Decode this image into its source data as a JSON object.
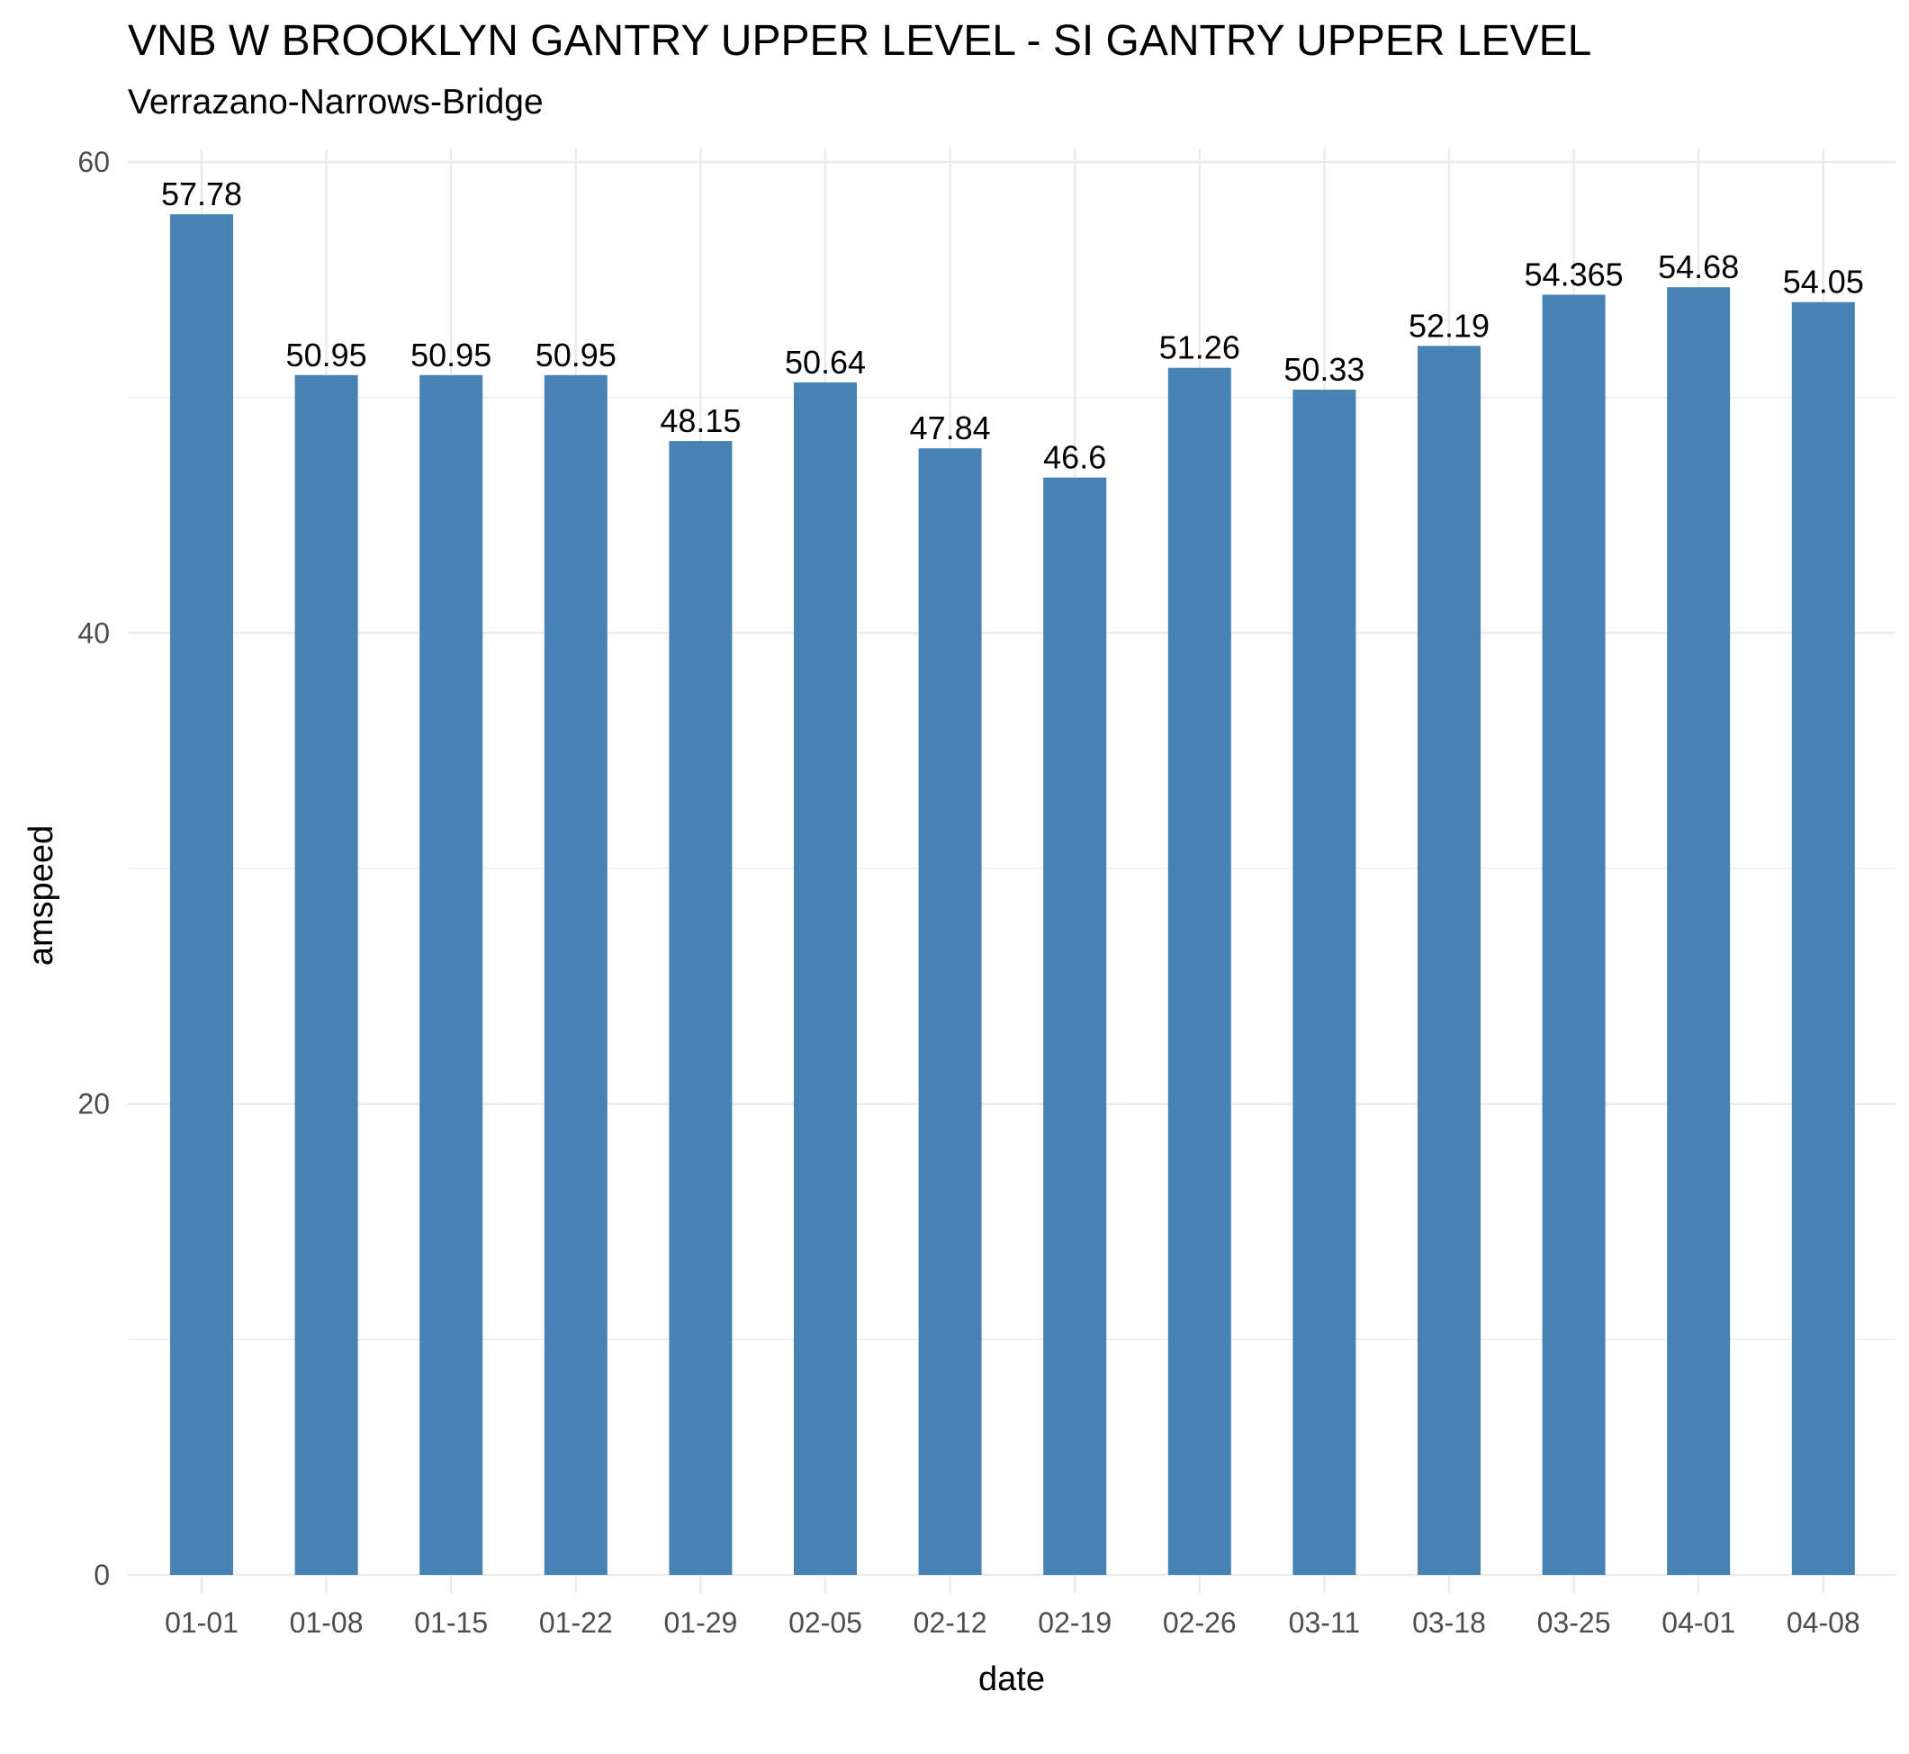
{
  "chart_data": {
    "type": "bar",
    "title": "VNB W BROOKLYN GANTRY UPPER LEVEL - SI GANTRY UPPER LEVEL",
    "subtitle": "Verrazano-Narrows-Bridge",
    "xlabel": "date",
    "ylabel": "amspeed",
    "categories": [
      "01-01",
      "01-08",
      "01-15",
      "01-22",
      "01-29",
      "02-05",
      "02-12",
      "02-19",
      "02-26",
      "03-11",
      "03-18",
      "03-25",
      "04-01",
      "04-08"
    ],
    "values": [
      57.78,
      50.95,
      50.95,
      50.95,
      48.15,
      50.64,
      47.84,
      46.6,
      51.26,
      50.33,
      52.19,
      54.365,
      54.68,
      54.05
    ],
    "value_labels": [
      "57.78",
      "50.95",
      "50.95",
      "50.95",
      "48.15",
      "50.64",
      "47.84",
      "46.6",
      "51.26",
      "50.33",
      "52.19",
      "54.365",
      "54.68",
      "54.05"
    ],
    "ylim": [
      0,
      60
    ],
    "yticks": [
      0,
      20,
      40,
      60
    ],
    "grid": true,
    "bar_color": "#4682B4",
    "grid_color": "#ebebeb"
  }
}
